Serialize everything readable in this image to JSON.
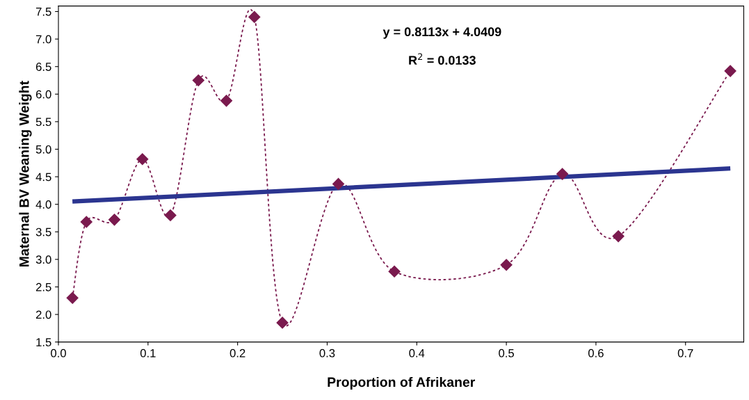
{
  "chart_data": {
    "type": "line",
    "xlabel": "Proportion of Afrikaner",
    "ylabel": "Maternal BV Weaning Weight",
    "annotations": [
      "y = 0.8113x + 4.0409",
      "R$^{2}$ = 0.0133"
    ],
    "series": [
      {
        "color": "#7a1a4e",
        "marker": "diamond",
        "line_style": "dotted",
        "x": [
          0.015625,
          0.03125,
          0.0625,
          0.09375,
          0.125,
          0.15625,
          0.1875,
          0.21875,
          0.25,
          0.3125,
          0.375,
          0.5,
          0.5625,
          0.625,
          0.75
        ],
        "values": [
          2.3,
          3.68,
          3.72,
          4.82,
          3.8,
          6.25,
          5.88,
          7.4,
          1.85,
          4.37,
          2.78,
          2.9,
          4.55,
          3.42,
          6.42
        ]
      },
      {
        "color": "#2b3590",
        "marker": "none",
        "line_style": "solid",
        "x": [
          0.015625,
          0.75
        ],
        "values": [
          4.05,
          4.65
        ]
      }
    ],
    "xlim": [
      0,
      0.765
    ],
    "xticks": [
      {
        "value": 0,
        "label": "0.0"
      },
      0.1,
      0.2,
      0.3,
      0.4,
      0.5,
      0.6,
      0.7
    ],
    "ylim": [
      1.5,
      7.6
    ],
    "yticks": [
      1.5,
      {
        "value": 2,
        "label": "2.0"
      },
      2.5,
      {
        "value": 3,
        "label": "3.0"
      },
      3.5,
      {
        "value": 4,
        "label": "4.0"
      },
      4.5,
      {
        "value": 5,
        "label": "5.0"
      },
      5.5,
      {
        "value": 6,
        "label": "6.0"
      },
      6.5,
      {
        "value": 7,
        "label": "7.0"
      },
      7.5
    ],
    "grid": false,
    "legend": false
  }
}
